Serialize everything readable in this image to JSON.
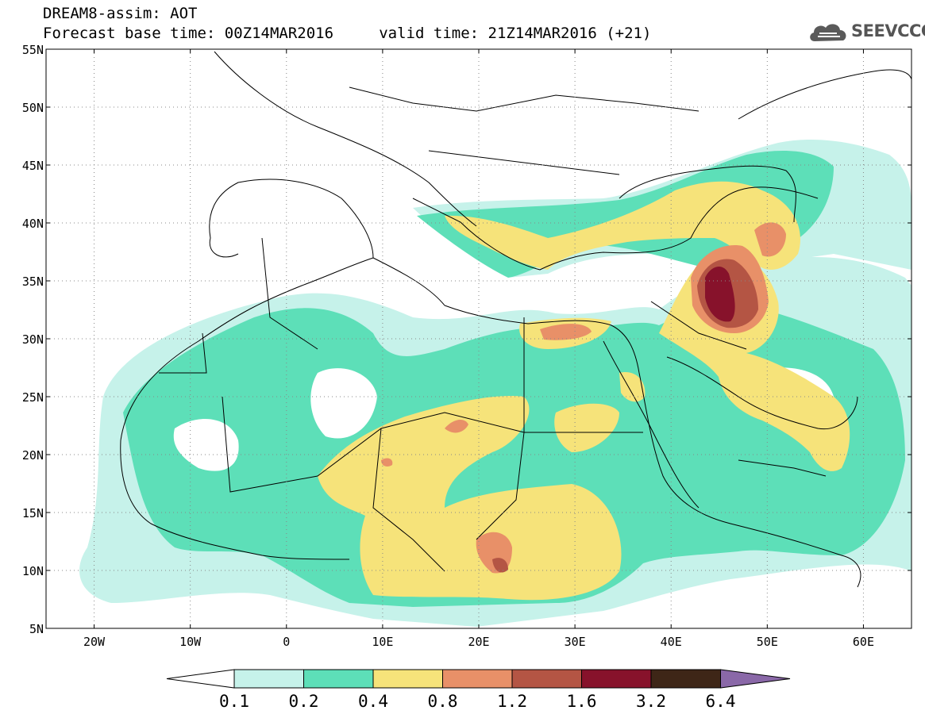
{
  "header": {
    "title": "DREAM8-assim: AOT",
    "subtitle": "Forecast base time: 00Z14MAR2016     valid time: 21Z14MAR2016 (+21)"
  },
  "logo": {
    "text": "SEEVCCC",
    "icon": "cloud-icon"
  },
  "map": {
    "lon_range": [
      -25,
      65
    ],
    "lat_range": [
      5,
      55
    ],
    "lat_labels": [
      "55N",
      "50N",
      "45N",
      "40N",
      "35N",
      "30N",
      "25N",
      "20N",
      "15N",
      "10N",
      "5N"
    ],
    "lon_labels": [
      "20W",
      "10W",
      "0",
      "10E",
      "20E",
      "30E",
      "40E",
      "50E",
      "60E"
    ],
    "grid": "dotted"
  },
  "colorbar": {
    "labels": [
      "0.1",
      "0.2",
      "0.4",
      "0.8",
      "1.2",
      "1.6",
      "3.2",
      "6.4"
    ],
    "colors": [
      "#c6f2ea",
      "#5ddfb8",
      "#f6e37a",
      "#e89068",
      "#b45544",
      "#87122b",
      "#3e2617",
      "#8a68a8"
    ]
  }
}
